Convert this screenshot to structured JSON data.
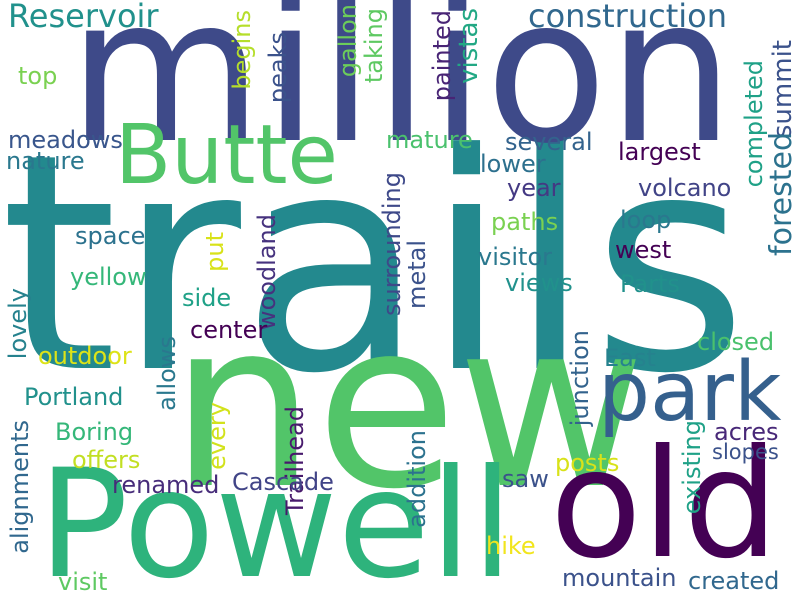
{
  "words": [
    {
      "text": "trails",
      "color": "#23898e"
    },
    {
      "text": "million",
      "color": "#3e4a89"
    },
    {
      "text": "new",
      "color": "#52c569"
    },
    {
      "text": "Powell",
      "color": "#2eb37c"
    },
    {
      "text": "old",
      "color": "#440154"
    },
    {
      "text": "Butte",
      "color": "#52c569"
    },
    {
      "text": "park",
      "color": "#35608d"
    },
    {
      "text": "construction",
      "color": "#31688e"
    },
    {
      "text": "Reservoir",
      "color": "#21918c"
    },
    {
      "text": "summit",
      "color": "#3b528b"
    },
    {
      "text": "forested",
      "color": "#2c728e"
    },
    {
      "text": "completed",
      "color": "#1fa187"
    },
    {
      "text": "painted",
      "color": "#482475"
    },
    {
      "text": "vistas",
      "color": "#22a884"
    },
    {
      "text": "taking",
      "color": "#5ec962"
    },
    {
      "text": "gallon",
      "color": "#6ccd5a"
    },
    {
      "text": "peaks",
      "color": "#3b528b"
    },
    {
      "text": "begins",
      "color": "#b5de2b"
    },
    {
      "text": "top",
      "color": "#7ad151"
    },
    {
      "text": "meadows",
      "color": "#39568c"
    },
    {
      "text": "nature",
      "color": "#2a788e"
    },
    {
      "text": "mature",
      "color": "#4ac16d"
    },
    {
      "text": "several",
      "color": "#33638d"
    },
    {
      "text": "largest",
      "color": "#440154"
    },
    {
      "text": "lower",
      "color": "#2d708e"
    },
    {
      "text": "year",
      "color": "#443983"
    },
    {
      "text": "volcano",
      "color": "#414487"
    },
    {
      "text": "paths",
      "color": "#7ad151"
    },
    {
      "text": "loop",
      "color": "#2a788e"
    },
    {
      "text": "space",
      "color": "#2c728e"
    },
    {
      "text": "west",
      "color": "#440154"
    },
    {
      "text": "visitor",
      "color": "#2a788e"
    },
    {
      "text": "yellow",
      "color": "#35b779"
    },
    {
      "text": "put",
      "color": "#d8e219"
    },
    {
      "text": "woodland",
      "color": "#46327e"
    },
    {
      "text": "surrounding",
      "color": "#3e4989"
    },
    {
      "text": "metal",
      "color": "#3b528b"
    },
    {
      "text": "views",
      "color": "#21918c"
    },
    {
      "text": "Parts",
      "color": "#21918c"
    },
    {
      "text": "side",
      "color": "#1fa187"
    },
    {
      "text": "lovely",
      "color": "#26828e"
    },
    {
      "text": "allows",
      "color": "#2a788e"
    },
    {
      "text": "center",
      "color": "#440154"
    },
    {
      "text": "closed",
      "color": "#4ac16d"
    },
    {
      "text": "outdoor",
      "color": "#dde318"
    },
    {
      "text": "junction",
      "color": "#33638d"
    },
    {
      "text": "East",
      "color": "#26828e"
    },
    {
      "text": "Portland",
      "color": "#21918c"
    },
    {
      "text": "Boring",
      "color": "#35b779"
    },
    {
      "text": "every",
      "color": "#d2e21b"
    },
    {
      "text": "Trailhead",
      "color": "#481a6c"
    },
    {
      "text": "acres",
      "color": "#482878"
    },
    {
      "text": "existing",
      "color": "#1fa187"
    },
    {
      "text": "slopes",
      "color": "#3b528b"
    },
    {
      "text": "alignments",
      "color": "#31688e"
    },
    {
      "text": "offers",
      "color": "#c2df23"
    },
    {
      "text": "posts",
      "color": "#d8e219"
    },
    {
      "text": "renamed",
      "color": "#472c7a"
    },
    {
      "text": "Cascade",
      "color": "#414487"
    },
    {
      "text": "addition",
      "color": "#2c728e"
    },
    {
      "text": "saw",
      "color": "#3b528b"
    },
    {
      "text": "hike",
      "color": "#f1e51d"
    },
    {
      "text": "mountain",
      "color": "#3b528b"
    },
    {
      "text": "created",
      "color": "#31688e"
    },
    {
      "text": "visit",
      "color": "#5ec962"
    }
  ]
}
